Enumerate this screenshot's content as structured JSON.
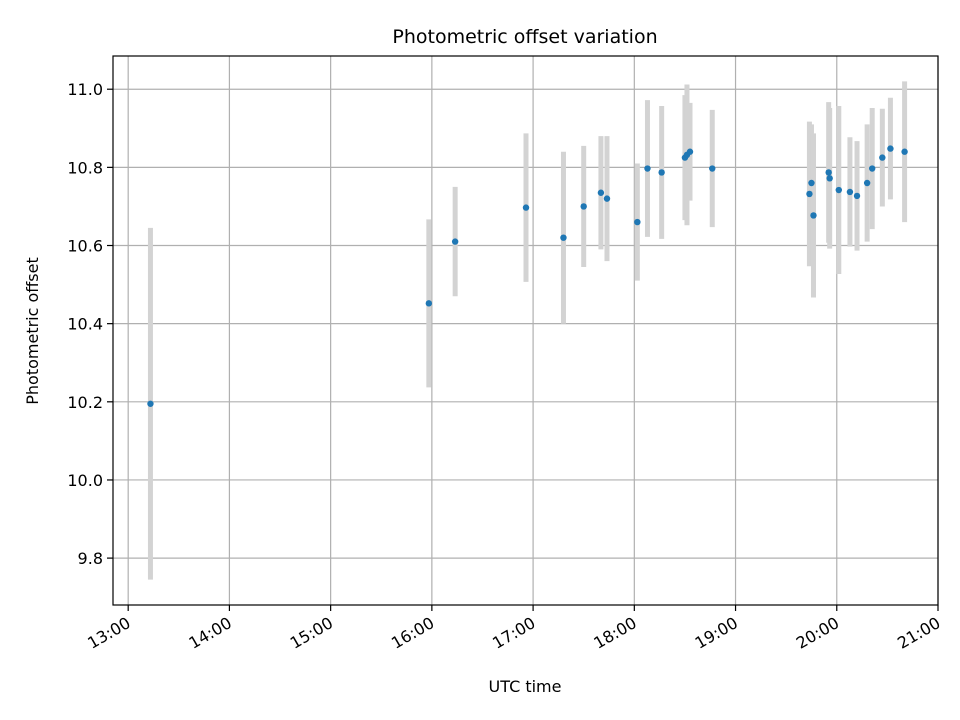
{
  "chart_data": {
    "type": "scatter",
    "title": "Photometric offset variation",
    "xlabel": "UTC time",
    "ylabel": "Photometric offset",
    "x_unit": "hour of day (UTC)",
    "xlim": [
      12.85,
      21.0
    ],
    "ylim": [
      9.68,
      11.085
    ],
    "x_ticks": [
      13,
      14,
      15,
      16,
      17,
      18,
      19,
      20,
      21
    ],
    "x_tick_labels": [
      "13:00",
      "14:00",
      "15:00",
      "16:00",
      "17:00",
      "18:00",
      "19:00",
      "20:00",
      "21:00"
    ],
    "y_ticks": [
      9.8,
      10.0,
      10.2,
      10.4,
      10.6,
      10.8,
      11.0
    ],
    "y_tick_labels": [
      "9.8",
      "10.0",
      "10.2",
      "10.4",
      "10.6",
      "10.8",
      "11.0"
    ],
    "grid": true,
    "colors": {
      "points": "#1f77b4",
      "errorbars": "#d3d3d3",
      "grid": "#b0b0b0"
    },
    "points": [
      {
        "x": 13.22,
        "y": 10.195,
        "err": 0.45
      },
      {
        "x": 15.97,
        "y": 10.452,
        "err": 0.215
      },
      {
        "x": 16.23,
        "y": 10.61,
        "err": 0.14
      },
      {
        "x": 16.93,
        "y": 10.697,
        "err": 0.19
      },
      {
        "x": 17.3,
        "y": 10.62,
        "err": 0.22
      },
      {
        "x": 17.5,
        "y": 10.7,
        "err": 0.155
      },
      {
        "x": 17.67,
        "y": 10.735,
        "err": 0.145
      },
      {
        "x": 17.73,
        "y": 10.72,
        "err": 0.16
      },
      {
        "x": 18.03,
        "y": 10.66,
        "err": 0.15
      },
      {
        "x": 18.13,
        "y": 10.797,
        "err": 0.175
      },
      {
        "x": 18.27,
        "y": 10.787,
        "err": 0.17
      },
      {
        "x": 18.5,
        "y": 10.825,
        "err": 0.16
      },
      {
        "x": 18.52,
        "y": 10.832,
        "err": 0.18
      },
      {
        "x": 18.55,
        "y": 10.84,
        "err": 0.125
      },
      {
        "x": 18.77,
        "y": 10.797,
        "err": 0.15
      },
      {
        "x": 19.73,
        "y": 10.732,
        "err": 0.185
      },
      {
        "x": 19.75,
        "y": 10.76,
        "err": 0.15
      },
      {
        "x": 19.77,
        "y": 10.677,
        "err": 0.21
      },
      {
        "x": 19.92,
        "y": 10.787,
        "err": 0.18
      },
      {
        "x": 19.93,
        "y": 10.772,
        "err": 0.18
      },
      {
        "x": 20.02,
        "y": 10.742,
        "err": 0.215
      },
      {
        "x": 20.13,
        "y": 10.737,
        "err": 0.14
      },
      {
        "x": 20.2,
        "y": 10.727,
        "err": 0.14
      },
      {
        "x": 20.3,
        "y": 10.76,
        "err": 0.15
      },
      {
        "x": 20.35,
        "y": 10.797,
        "err": 0.155
      },
      {
        "x": 20.45,
        "y": 10.825,
        "err": 0.125
      },
      {
        "x": 20.53,
        "y": 10.848,
        "err": 0.13
      },
      {
        "x": 20.67,
        "y": 10.84,
        "err": 0.18
      }
    ]
  }
}
